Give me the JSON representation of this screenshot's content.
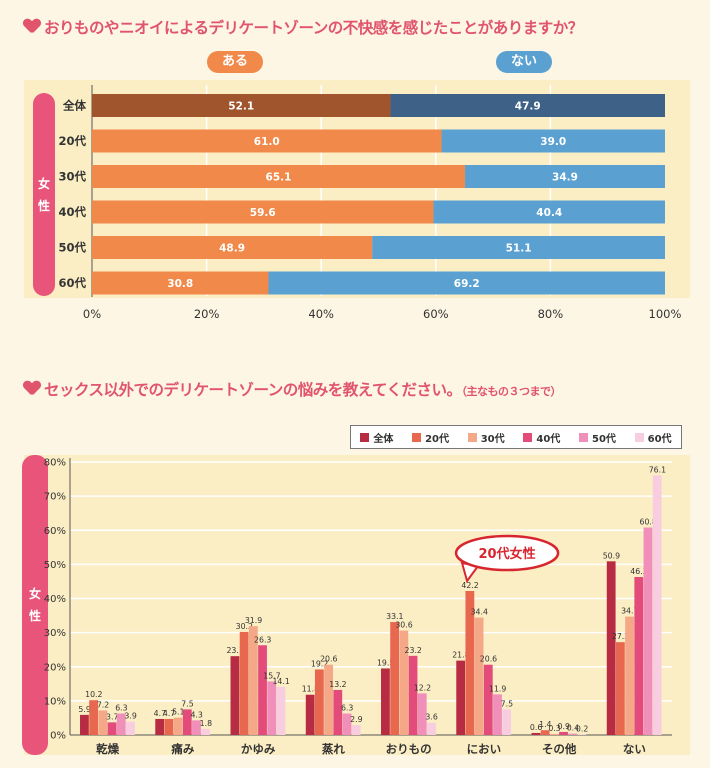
{
  "q1": {
    "title": "おりものやニオイによるデリケートゾーンの不快感を感じたことがありますか？"
  },
  "q2": {
    "title": "セックス以外でのデリケートゾーンの悩みを教えてください。",
    "note": "（主なもの３つまで）"
  },
  "chart_data": [
    {
      "type": "bar",
      "orientation": "horizontal-stacked",
      "group_label": "女性",
      "categories": [
        "全体",
        "20代",
        "30代",
        "40代",
        "50代",
        "60代"
      ],
      "series": [
        {
          "name": "ある",
          "values": [
            52.1,
            61.0,
            65.1,
            59.6,
            48.9,
            30.8
          ],
          "labels": [
            "52.1",
            "61.0",
            "65.1",
            "59.6",
            "48.9",
            "30.8"
          ],
          "color": "#f0894a",
          "highlight_color": "#a0552c"
        },
        {
          "name": "ない",
          "values": [
            47.9,
            39.0,
            34.9,
            40.4,
            51.1,
            69.2
          ],
          "labels": [
            "47.9",
            "39.0",
            "34.9",
            "40.4",
            "51.1",
            "69.2"
          ],
          "color": "#5aa1d2",
          "highlight_color": "#3d6187"
        }
      ],
      "xticks": [
        "0%",
        "20%",
        "40%",
        "60%",
        "80%",
        "100%"
      ],
      "xlim": [
        0,
        100
      ]
    },
    {
      "type": "bar",
      "group_label": "女性",
      "categories": [
        "乾燥",
        "痛み",
        "かゆみ",
        "蒸れ",
        "おりもの",
        "におい",
        "その他",
        "ない"
      ],
      "series": [
        {
          "name": "全体",
          "color": "#b72c43",
          "values": [
            5.9,
            4.7,
            23.1,
            11.8,
            19.5,
            21.8,
            0.6,
            50.9
          ]
        },
        {
          "name": "20代",
          "color": "#e8674f",
          "values": [
            10.2,
            4.7,
            30.2,
            19.2,
            33.1,
            42.2,
            1.4,
            27.2
          ]
        },
        {
          "name": "30代",
          "color": "#f4a887",
          "values": [
            7.2,
            5.1,
            31.9,
            20.6,
            30.6,
            34.4,
            0.3,
            34.7
          ]
        },
        {
          "name": "40代",
          "color": "#e34b7b",
          "values": [
            3.7,
            7.5,
            26.3,
            13.2,
            23.2,
            20.6,
            0.9,
            46.3
          ]
        },
        {
          "name": "50代",
          "color": "#f08fb9",
          "values": [
            6.3,
            4.3,
            15.7,
            6.3,
            12.2,
            11.9,
            0.4,
            60.8
          ]
        },
        {
          "name": "60代",
          "color": "#f8cde0",
          "values": [
            3.9,
            1.8,
            14.1,
            2.9,
            3.6,
            7.5,
            0.2,
            76.1
          ]
        }
      ],
      "yticks": [
        "0%",
        "10%",
        "20%",
        "30%",
        "40%",
        "50%",
        "60%",
        "70%",
        "80%"
      ],
      "ylim": [
        0,
        80
      ],
      "annotation": {
        "text": "20代女性",
        "category": "におい",
        "color": "#d8262f"
      }
    }
  ],
  "pills": {
    "yes": "ある",
    "no": "ない",
    "yes_color": "#f0894a",
    "no_color": "#5aa1d2"
  }
}
